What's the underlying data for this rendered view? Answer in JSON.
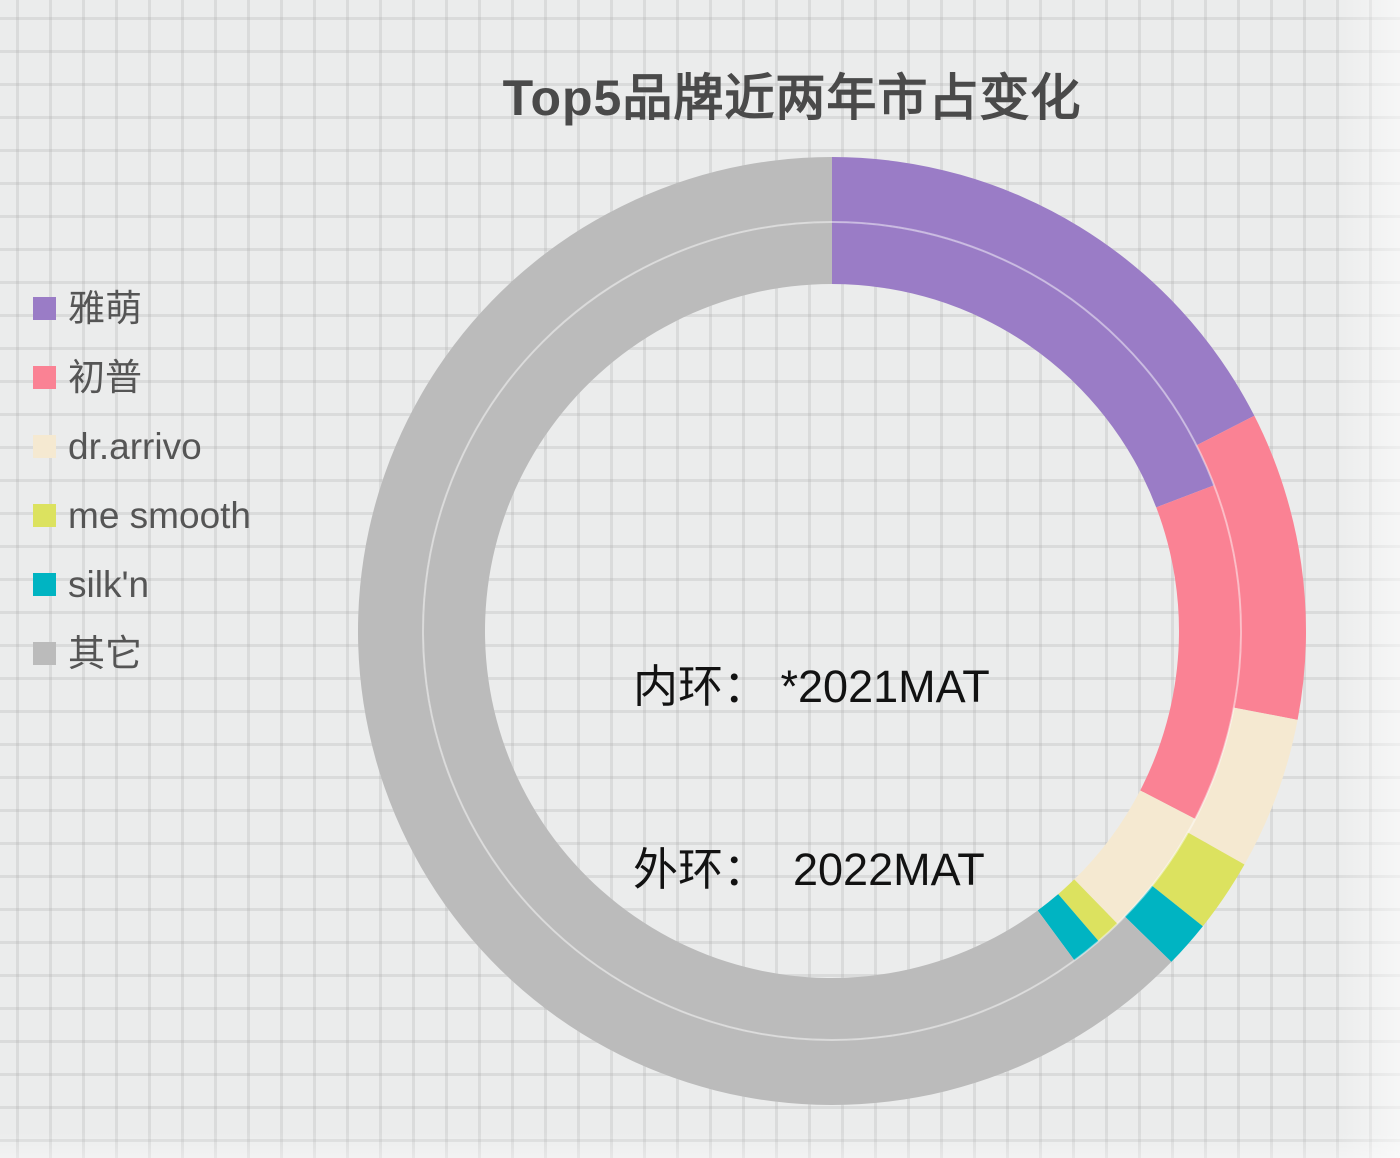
{
  "header": {
    "title": "Top5品牌近两年市占变化"
  },
  "legend": {
    "items": [
      {
        "id": "yameng",
        "label": "雅萌",
        "color": "#9a7cc6"
      },
      {
        "id": "chupu",
        "label": "初普",
        "color": "#fa8294"
      },
      {
        "id": "dr-arrivo",
        "label": "dr.arrivo",
        "color": "#f5e9d1"
      },
      {
        "id": "me-smooth",
        "label": "me smooth",
        "color": "#dce25f"
      },
      {
        "id": "silkn",
        "label": "silk'n",
        "color": "#00b4c2"
      },
      {
        "id": "other",
        "label": "其它",
        "color": "#bbbbbb"
      }
    ]
  },
  "annotation": {
    "line1": "内环： *2021MAT",
    "line2": "外环：  2022MAT"
  },
  "chart_data": {
    "type": "pie",
    "variant": "double-ring-donut",
    "title": "Top5品牌近两年市占变化",
    "categories": [
      "雅萌",
      "初普",
      "dr.arrivo",
      "me smooth",
      "silk'n",
      "其它"
    ],
    "colors": [
      "#9a7cc6",
      "#fa8294",
      "#f5e9d1",
      "#dce25f",
      "#00b4c2",
      "#bbbbbb"
    ],
    "values_unit": "% market share (read from arc angles)",
    "start_angle_deg": 0,
    "direction": "clockwise",
    "legend_position": "left",
    "series": [
      {
        "name": "*2021MAT",
        "ring": "inner",
        "values": [
          19.2,
          13.4,
          5.1,
          1.0,
          1.2,
          60.1
        ]
      },
      {
        "name": "2022MAT",
        "ring": "outer",
        "values": [
          17.5,
          10.5,
          5.2,
          2.5,
          1.6,
          62.7
        ]
      }
    ]
  }
}
